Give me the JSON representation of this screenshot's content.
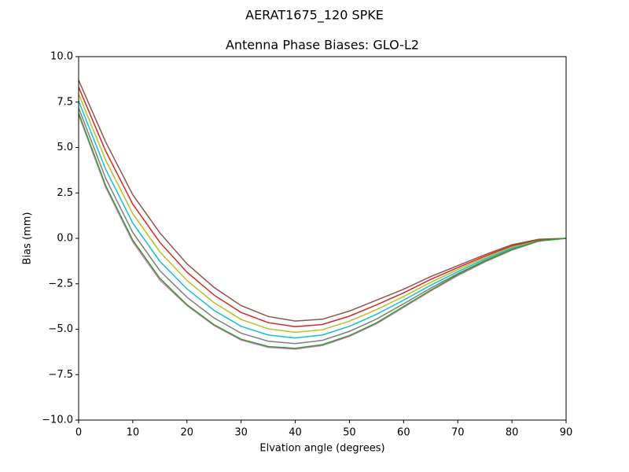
{
  "chart_data": {
    "type": "line",
    "suptitle": "AERAT1675_120   SPKE",
    "title": "Antenna Phase Biases: GLO-L2",
    "xlabel": "Elvation angle (degrees)",
    "ylabel": "Bias (mm)",
    "x": [
      0,
      5,
      10,
      15,
      20,
      25,
      30,
      35,
      40,
      45,
      50,
      55,
      60,
      65,
      70,
      75,
      80,
      85,
      90
    ],
    "xlim": [
      0,
      90
    ],
    "xticks": [
      0,
      10,
      20,
      30,
      40,
      50,
      60,
      70,
      80,
      90
    ],
    "ylim": [
      -10,
      10
    ],
    "yticks": [
      {
        "value": -10,
        "label": "−10.0"
      },
      {
        "value": -7.5,
        "label": "−7.5"
      },
      {
        "value": -5,
        "label": "−5.0"
      },
      {
        "value": -2.5,
        "label": "−2.5"
      },
      {
        "value": 0,
        "label": "0.0"
      },
      {
        "value": 2.5,
        "label": "2.5"
      },
      {
        "value": 5,
        "label": "5.0"
      },
      {
        "value": 7.5,
        "label": "7.5"
      },
      {
        "value": 10,
        "label": "10.0"
      }
    ],
    "grid": false,
    "series": [
      {
        "color": "#e377c2",
        "values": [
          6.8,
          2.8,
          -0.2,
          -2.3,
          -3.7,
          -4.8,
          -5.6,
          -6.0,
          -6.1,
          -5.9,
          -5.4,
          -4.7,
          -3.8,
          -2.9,
          -2.05,
          -1.3,
          -0.65,
          -0.15,
          0
        ]
      },
      {
        "color": "#7f7f7f",
        "values": [
          7.18,
          3.3,
          0.32,
          -1.78,
          -3.24,
          -4.38,
          -5.22,
          -5.66,
          -5.79,
          -5.61,
          -5.12,
          -4.44,
          -3.6,
          -2.74,
          -1.94,
          -1.22,
          -0.59,
          -0.13,
          0
        ]
      },
      {
        "color": "#17becf",
        "values": [
          7.56,
          3.8,
          0.84,
          -1.26,
          -2.78,
          -3.96,
          -4.84,
          -5.32,
          -5.48,
          -5.32,
          -4.84,
          -4.18,
          -3.4,
          -2.58,
          -1.83,
          -1.14,
          -0.53,
          -0.11,
          0
        ]
      },
      {
        "color": "#bcbd22",
        "values": [
          7.94,
          4.3,
          1.36,
          -0.74,
          -2.32,
          -3.54,
          -4.46,
          -4.98,
          -5.17,
          -5.03,
          -4.56,
          -3.92,
          -3.2,
          -2.42,
          -1.72,
          -1.06,
          -0.47,
          -0.09,
          0
        ]
      },
      {
        "color": "#d62728",
        "values": [
          8.32,
          4.8,
          1.88,
          -0.22,
          -1.86,
          -3.12,
          -4.08,
          -4.64,
          -4.86,
          -4.74,
          -4.28,
          -3.66,
          -3.0,
          -2.26,
          -1.61,
          -0.98,
          -0.41,
          -0.07,
          0
        ]
      },
      {
        "color": "#8c564b",
        "values": [
          8.7,
          5.3,
          2.4,
          0.3,
          -1.4,
          -2.7,
          -3.7,
          -4.3,
          -4.55,
          -4.45,
          -4.0,
          -3.4,
          -2.8,
          -2.1,
          -1.5,
          -0.9,
          -0.35,
          -0.05,
          0
        ]
      },
      {
        "color": "#2ca02c",
        "values": [
          6.9,
          2.9,
          -0.1,
          -2.2,
          -3.65,
          -4.75,
          -5.55,
          -5.95,
          -6.05,
          -5.85,
          -5.35,
          -4.65,
          -3.75,
          -2.85,
          -2.0,
          -1.27,
          -0.62,
          -0.14,
          0
        ]
      }
    ]
  }
}
